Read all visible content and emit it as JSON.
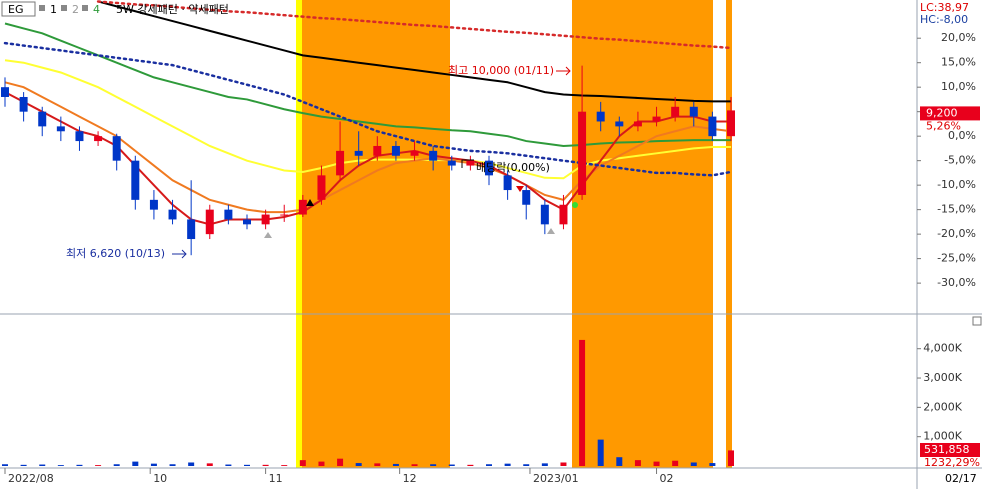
{
  "toolbar": {
    "items": [
      "EG",
      "1",
      "2",
      "4",
      "5W 강세패턴 · 약세패턴"
    ],
    "lc": "LC:38,97",
    "hc": "HC:-8,00"
  },
  "last_date": "02/17",
  "chart_data": [
    {
      "type": "candlestick",
      "categories": [
        null,
        null,
        null,
        null,
        null,
        null,
        null,
        null,
        null,
        null,
        null,
        null,
        null,
        null,
        null,
        null,
        null,
        null,
        null,
        null,
        null,
        null,
        null,
        null,
        null,
        null,
        null,
        null,
        null,
        null,
        null,
        null,
        null,
        null,
        null,
        null,
        null,
        null,
        null,
        null
      ],
      "open": [
        10,
        8,
        5,
        2,
        1,
        -1,
        0,
        -5,
        -13,
        -15,
        -17,
        -20,
        -15,
        -17,
        -18,
        -16,
        -16,
        -13,
        -8,
        -3,
        -4,
        -2,
        -4,
        -3,
        -5,
        -6,
        -5,
        -8,
        -11,
        -14,
        -18,
        -12,
        5,
        3,
        2,
        3,
        4,
        6,
        4,
        0
      ],
      "high": [
        12,
        9,
        6,
        4,
        2,
        1,
        0.5,
        -4,
        -11,
        -13,
        -9,
        -14,
        -14,
        -16,
        -15,
        -14,
        -12,
        -6,
        3,
        1,
        0,
        -1,
        -1,
        -2,
        -4,
        -4,
        -4,
        -7,
        -10,
        -13,
        -12,
        14.4,
        7,
        4,
        5,
        6,
        8,
        7,
        5,
        8
      ],
      "low": [
        6,
        3,
        0,
        -1,
        -3,
        -2,
        -7,
        -15,
        -17,
        -18,
        -24.3,
        -21,
        -18,
        -19,
        -19,
        -17.5,
        -16.5,
        -14,
        -9,
        -6,
        -5,
        -5,
        -5,
        -7,
        -7,
        -7,
        -10,
        -13,
        -17,
        -20,
        -19,
        -13,
        1,
        0,
        1,
        2,
        3,
        2,
        -1,
        -1
      ],
      "close": [
        8,
        5,
        2,
        1,
        -1,
        0,
        -5,
        -13,
        -15,
        -17,
        -21,
        -15,
        -17,
        -18,
        -16,
        -16,
        -13,
        -8,
        -3,
        -4,
        -2,
        -4,
        -3,
        -5,
        -6,
        -5,
        -8,
        -11,
        -14,
        -18,
        -14,
        5,
        3,
        2,
        3,
        4,
        6,
        4,
        0,
        5.26
      ],
      "up_color": "#e8001c",
      "down_color": "#0036c8",
      "series": [
        {
          "color": "#000000",
          "style": "solid",
          "values": [
            null,
            null,
            null,
            null,
            null,
            27.5,
            26.5,
            25.5,
            24.5,
            23.5,
            22.5,
            21.5,
            20.5,
            19.5,
            18.5,
            17.5,
            16.5,
            16,
            15.5,
            15,
            14.5,
            14,
            13.5,
            13,
            12.5,
            12,
            11.5,
            11,
            10,
            9,
            8.5,
            8.3,
            8.2,
            8,
            7.8,
            7.6,
            7.4,
            7.2,
            7.1,
            7.1
          ]
        },
        {
          "color": "#2e9a3a",
          "style": "solid",
          "values": [
            23,
            22,
            21,
            19.5,
            18,
            16.5,
            15,
            13.5,
            12,
            11,
            10,
            9,
            8,
            7.5,
            6.5,
            5.5,
            4.7,
            4,
            3.5,
            3,
            2.5,
            2,
            1.8,
            1.5,
            1.2,
            1,
            0.5,
            0,
            -1,
            -1.5,
            -2,
            -1.8,
            -1.5,
            -1.3,
            -1.2,
            -1,
            -0.9,
            -0.8,
            -0.8,
            -0.8
          ]
        },
        {
          "color": "#ffff33",
          "style": "solid",
          "values": [
            15.5,
            15,
            14,
            13,
            11.5,
            10,
            8,
            6,
            4,
            2,
            0,
            -2,
            -3.5,
            -5,
            -6,
            -7,
            -7.3,
            -6.5,
            -5.5,
            -5,
            -4.8,
            -4.8,
            -4.8,
            -4.9,
            -4.9,
            -5,
            -5.5,
            -6.5,
            -7.5,
            -8.5,
            -8.6,
            -6,
            -5,
            -4.5,
            -4,
            -3.5,
            -3,
            -2.5,
            -2.2,
            -2.2
          ]
        },
        {
          "color": "#f07a20",
          "style": "solid",
          "values": [
            11,
            10,
            8,
            6,
            4,
            2,
            0,
            -3,
            -6,
            -9,
            -11,
            -13,
            -14,
            -15,
            -15.5,
            -15.5,
            -15,
            -13,
            -11,
            -9,
            -7,
            -5.5,
            -5,
            -4.5,
            -5,
            -5.5,
            -6.5,
            -8,
            -10,
            -12,
            -13,
            -9,
            -6,
            -4,
            -2,
            0,
            1,
            2,
            1.5,
            1
          ]
        },
        {
          "color": "#d61a1a",
          "style": "solid",
          "values": [
            9,
            7,
            5,
            3,
            1,
            0,
            -2,
            -6,
            -10,
            -14,
            -17,
            -18,
            -17,
            -17,
            -17,
            -16.5,
            -15.5,
            -13,
            -9,
            -6,
            -4,
            -3.5,
            -3,
            -4,
            -4.5,
            -5,
            -6,
            -8,
            -10,
            -13,
            -15,
            -10,
            -5,
            0,
            3,
            3,
            4,
            4,
            3,
            3
          ]
        },
        {
          "color": "#1a2fa0",
          "style": "dotted",
          "values": [
            19,
            18.5,
            18,
            17.5,
            17,
            16.5,
            16,
            15.5,
            15,
            14.5,
            13.5,
            12.5,
            11.5,
            10.5,
            9.5,
            8.5,
            7,
            5.5,
            4,
            2.5,
            1,
            0,
            -1,
            -2,
            -2.5,
            -3,
            -3.2,
            -3.5,
            -4,
            -4.5,
            -5,
            -5.5,
            -6,
            -6.5,
            -7,
            -7.5,
            -7.5,
            -7.8,
            -8,
            -7.3
          ]
        },
        {
          "color": "#d62a2a",
          "style": "dotted",
          "values": [
            null,
            null,
            null,
            null,
            null,
            27.5,
            27.2,
            26.9,
            26.7,
            26.4,
            26.1,
            25.8,
            25.5,
            25.3,
            25.0,
            24.7,
            24.4,
            24.1,
            23.9,
            23.6,
            23.3,
            23.0,
            22.7,
            22.5,
            22.2,
            21.9,
            21.6,
            21.3,
            21.1,
            20.8,
            20.5,
            20.2,
            19.9,
            19.7,
            19.4,
            19.1,
            18.8,
            18.5,
            18.3,
            18.0
          ]
        }
      ],
      "xlim": [
        0,
        39
      ],
      "xticks": [
        {
          "value": 0,
          "label": "2022/08"
        },
        {
          "value": 7.8,
          "label": "10"
        },
        {
          "value": 14,
          "label": "11"
        },
        {
          "value": 21.2,
          "label": "12"
        },
        {
          "value": 28.2,
          "label": "2023/01"
        },
        {
          "value": 35,
          "label": "02"
        }
      ],
      "ylim": [
        -36.1,
        27.8
      ],
      "yticks": [
        {
          "value": 20,
          "label": "20,0%"
        },
        {
          "value": 15,
          "label": "15,0%"
        },
        {
          "value": 10,
          "label": "10,0%"
        },
        {
          "value": 5,
          "label": "5,0%"
        },
        {
          "value": 0,
          "label": "0,0%"
        },
        {
          "value": -5,
          "label": "-5,0%"
        },
        {
          "value": -10,
          "label": "-10,0%"
        },
        {
          "value": -15,
          "label": "-15,0%"
        },
        {
          "value": -20,
          "label": "-20,0%"
        },
        {
          "value": -25,
          "label": "-25,0%"
        },
        {
          "value": -30,
          "label": "-30,0%"
        }
      ],
      "grid": false,
      "current_price": "9,200",
      "current_change": "5,26%",
      "annotations": {
        "high": "최고 10,000 (01/11)",
        "low": "최저 6,620 (10/13)",
        "dividend": "배당락(0,00%)"
      }
    },
    {
      "type": "bar",
      "values": [
        60000,
        40000,
        50000,
        30000,
        40000,
        30000,
        60000,
        150000,
        80000,
        60000,
        120000,
        90000,
        50000,
        40000,
        40000,
        30000,
        200000,
        150000,
        250000,
        100000,
        90000,
        70000,
        60000,
        60000,
        50000,
        40000,
        60000,
        80000,
        60000,
        90000,
        120000,
        4300000,
        900000,
        300000,
        200000,
        150000,
        180000,
        120000,
        100000,
        531858
      ],
      "value_labels": [
        null,
        null,
        null,
        null,
        null,
        null,
        null,
        null,
        null,
        null,
        null,
        null,
        null,
        null,
        null,
        null,
        null,
        null,
        null,
        null,
        null,
        null,
        null,
        null,
        null,
        null,
        null,
        null,
        null,
        null,
        null,
        null,
        null,
        null,
        null,
        null,
        null,
        null,
        null,
        "531,858"
      ],
      "ratio_label": "1232,29%",
      "ylim": [
        0,
        5150000
      ],
      "yticks": [
        {
          "value": 4000000,
          "label": "4,000K"
        },
        {
          "value": 3000000,
          "label": "3,000K"
        },
        {
          "value": 2000000,
          "label": "2,000K"
        },
        {
          "value": 1000000,
          "label": "1,000K"
        }
      ],
      "grid": false
    }
  ]
}
